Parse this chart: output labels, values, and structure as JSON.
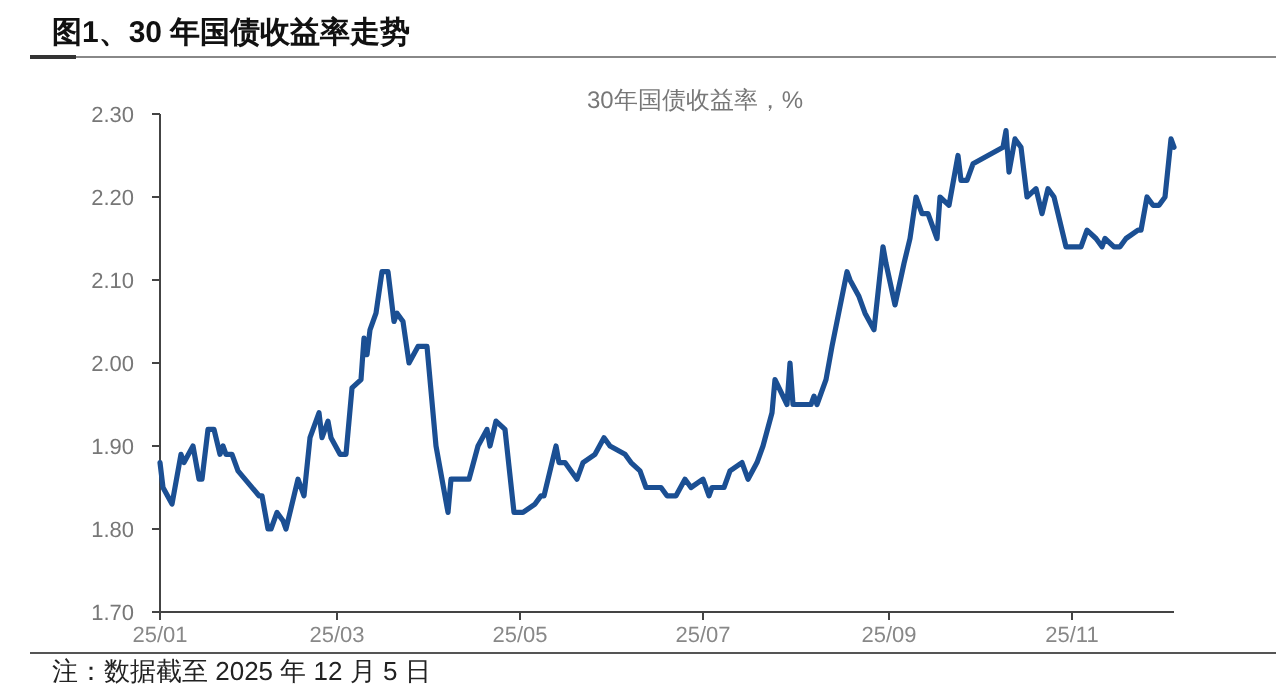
{
  "chart_data": {
    "type": "line",
    "title": "图1、30 年国债收益率走势",
    "subtitle": "30年国债收益率，%",
    "annotations": [
      "注：数据截至 2025 年 12 月 5 日"
    ],
    "x": [
      "2025-01-01",
      "2025-01-02",
      "2025-01-05",
      "2025-01-08",
      "2025-01-09",
      "2025-01-12",
      "2025-01-14",
      "2025-01-15",
      "2025-01-17",
      "2025-01-19",
      "2025-01-21",
      "2025-01-22",
      "2025-01-23",
      "2025-01-25",
      "2025-01-27",
      "2025-02-03",
      "2025-02-04",
      "2025-02-06",
      "2025-02-07",
      "2025-02-09",
      "2025-02-11",
      "2025-02-12",
      "2025-02-16",
      "2025-02-18",
      "2025-02-20",
      "2025-02-23",
      "2025-02-24",
      "2025-02-26",
      "2025-02-27",
      "2025-03-02",
      "2025-03-04",
      "2025-03-06",
      "2025-03-09",
      "2025-03-10",
      "2025-03-11",
      "2025-03-12",
      "2025-03-14",
      "2025-03-16",
      "2025-03-18",
      "2025-03-20",
      "2025-03-21",
      "2025-03-23",
      "2025-03-25",
      "2025-03-28",
      "2025-03-31",
      "2025-04-03",
      "2025-04-07",
      "2025-04-08",
      "2025-04-11",
      "2025-04-14",
      "2025-04-17",
      "2025-04-20",
      "2025-04-21",
      "2025-04-23",
      "2025-04-26",
      "2025-04-29",
      "2025-05-02",
      "2025-05-06",
      "2025-05-08",
      "2025-05-09",
      "2025-05-13",
      "2025-05-14",
      "2025-05-16",
      "2025-05-20",
      "2025-05-22",
      "2025-05-26",
      "2025-05-29",
      "2025-05-31",
      "2025-06-05",
      "2025-06-07",
      "2025-06-10",
      "2025-06-12",
      "2025-06-17",
      "2025-06-19",
      "2025-06-22",
      "2025-06-25",
      "2025-06-27",
      "2025-07-01",
      "2025-07-03",
      "2025-07-04",
      "2025-07-08",
      "2025-07-10",
      "2025-07-14",
      "2025-07-16",
      "2025-07-19",
      "2025-07-21",
      "2025-07-24",
      "2025-07-25",
      "2025-07-29",
      "2025-07-30",
      "2025-07-31",
      "2025-08-06",
      "2025-08-07",
      "2025-08-08",
      "2025-08-11",
      "2025-08-13",
      "2025-08-18",
      "2025-08-19",
      "2025-08-22",
      "2025-08-24",
      "2025-08-27",
      "2025-08-30",
      "2025-08-31",
      "2025-09-03",
      "2025-09-06",
      "2025-09-08",
      "2025-09-10",
      "2025-09-12",
      "2025-09-14",
      "2025-09-17",
      "2025-09-18",
      "2025-09-21",
      "2025-09-24",
      "2025-09-25",
      "2025-09-27",
      "2025-09-29",
      "2025-10-09",
      "2025-10-10",
      "2025-10-11",
      "2025-10-13",
      "2025-10-15",
      "2025-10-17",
      "2025-10-20",
      "2025-10-22",
      "2025-10-24",
      "2025-10-26",
      "2025-10-28",
      "2025-10-30",
      "2025-11-03",
      "2025-11-04",
      "2025-11-06",
      "2025-11-09",
      "2025-11-11",
      "2025-11-12",
      "2025-11-15",
      "2025-11-17",
      "2025-11-19",
      "2025-11-23",
      "2025-11-24",
      "2025-11-26",
      "2025-11-28",
      "2025-11-30",
      "2025-12-02",
      "2025-12-04",
      "2025-12-05"
    ],
    "series": [
      {
        "color": "#1b4f93",
        "values": [
          1.88,
          1.85,
          1.83,
          1.89,
          1.88,
          1.9,
          1.86,
          1.86,
          1.92,
          1.92,
          1.89,
          1.9,
          1.89,
          1.89,
          1.87,
          1.84,
          1.84,
          1.8,
          1.8,
          1.82,
          1.81,
          1.8,
          1.86,
          1.84,
          1.91,
          1.94,
          1.91,
          1.93,
          1.91,
          1.89,
          1.89,
          1.97,
          1.98,
          2.03,
          2.01,
          2.04,
          2.06,
          2.11,
          2.11,
          2.05,
          2.06,
          2.05,
          2.0,
          2.02,
          2.02,
          1.9,
          1.82,
          1.86,
          1.86,
          1.86,
          1.9,
          1.92,
          1.9,
          1.93,
          1.92,
          1.82,
          1.82,
          1.83,
          1.84,
          1.84,
          1.9,
          1.88,
          1.88,
          1.86,
          1.88,
          1.89,
          1.91,
          1.9,
          1.89,
          1.88,
          1.87,
          1.85,
          1.85,
          1.84,
          1.84,
          1.86,
          1.85,
          1.86,
          1.84,
          1.85,
          1.85,
          1.87,
          1.88,
          1.86,
          1.88,
          1.9,
          1.94,
          1.98,
          1.95,
          2.0,
          1.95,
          1.95,
          1.96,
          1.95,
          1.98,
          2.02,
          2.11,
          2.1,
          2.08,
          2.06,
          2.04,
          2.14,
          2.12,
          2.07,
          2.12,
          2.15,
          2.2,
          2.18,
          2.18,
          2.15,
          2.2,
          2.19,
          2.25,
          2.22,
          2.22,
          2.24,
          2.26,
          2.28,
          2.23,
          2.27,
          2.26,
          2.2,
          2.21,
          2.18,
          2.21,
          2.2,
          2.17,
          2.14,
          2.14,
          2.14,
          2.16,
          2.15,
          2.14,
          2.15,
          2.14,
          2.14,
          2.15,
          2.16,
          2.16,
          2.2,
          2.19,
          2.19,
          2.2,
          2.27,
          2.26
        ]
      }
    ],
    "xlim": [
      "2025-01-01",
      "2025-12-05"
    ],
    "xticks": [
      {
        "value": "2025-01",
        "label": "25/01"
      },
      {
        "value": "2025-03",
        "label": "25/03"
      },
      {
        "value": "2025-05",
        "label": "25/05"
      },
      {
        "value": "2025-07",
        "label": "25/07"
      },
      {
        "value": "2025-09",
        "label": "25/09"
      },
      {
        "value": "2025-11",
        "label": "25/11"
      }
    ],
    "ylim": [
      1.7,
      2.3
    ],
    "yticks": [
      {
        "value": 1.7,
        "label": "1.70"
      },
      {
        "value": 1.8,
        "label": "1.80"
      },
      {
        "value": 1.9,
        "label": "1.90"
      },
      {
        "value": 2.0,
        "label": "2.00"
      },
      {
        "value": 2.1,
        "label": "2.10"
      },
      {
        "value": 2.2,
        "label": "2.20"
      },
      {
        "value": 2.3,
        "label": "2.30"
      }
    ],
    "grid": false,
    "marker": "none",
    "line_style": "solid"
  }
}
